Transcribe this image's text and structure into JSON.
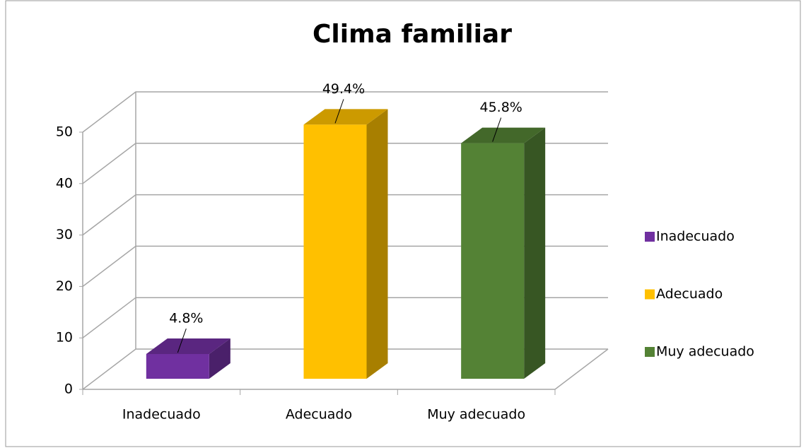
{
  "chart_data": {
    "type": "bar3d",
    "title": "Clima familiar",
    "categories": [
      "Inadecuado",
      "Adecuado",
      "Muy adecuado"
    ],
    "values": [
      4.8,
      49.4,
      45.8
    ],
    "value_labels": [
      "4.8%",
      "49.4%",
      "45.8%"
    ],
    "colors": [
      "#7030a0",
      "#ffc000",
      "#548235"
    ],
    "ylim": [
      0,
      50
    ],
    "yticks": [
      0,
      10,
      20,
      30,
      40,
      50
    ],
    "grid": true,
    "legend": "right"
  }
}
